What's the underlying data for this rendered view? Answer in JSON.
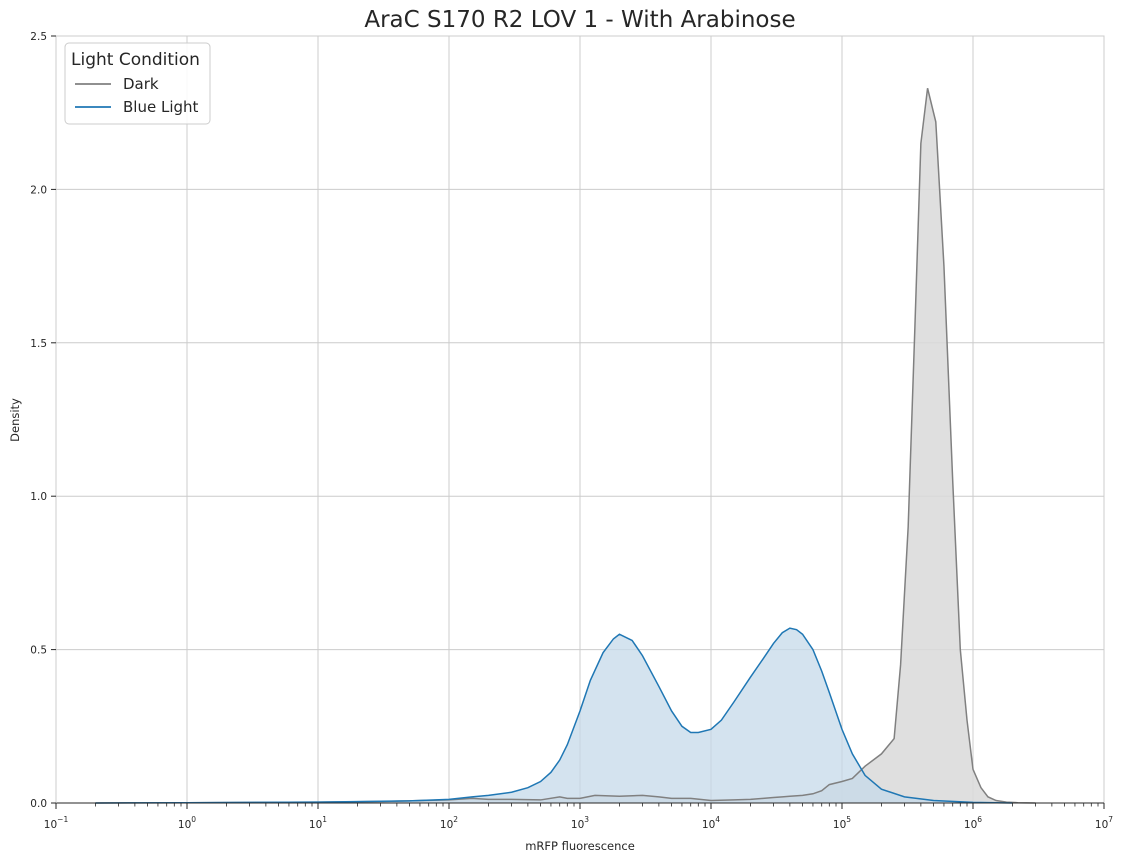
{
  "chart_data": {
    "type": "area",
    "title": "AraC S170 R2 LOV 1 - With Arabinose",
    "xlabel": "mRFP fluorescence",
    "ylabel": "Density",
    "x_scale": "log",
    "xlim": [
      0.1,
      10000000
    ],
    "ylim": [
      0,
      2.5
    ],
    "grid": true,
    "legend": {
      "title": "Light Condition",
      "placement": "top-left"
    },
    "x_ticks": [
      {
        "base": "10",
        "exp": "−1"
      },
      {
        "base": "10",
        "exp": "0"
      },
      {
        "base": "10",
        "exp": "1"
      },
      {
        "base": "10",
        "exp": "2"
      },
      {
        "base": "10",
        "exp": "3"
      },
      {
        "base": "10",
        "exp": "4"
      },
      {
        "base": "10",
        "exp": "5"
      },
      {
        "base": "10",
        "exp": "6"
      },
      {
        "base": "10",
        "exp": "7"
      }
    ],
    "y_ticks": [
      "0.0",
      "0.5",
      "1.0",
      "1.5",
      "2.0",
      "2.5"
    ],
    "series": [
      {
        "name": "Dark",
        "color": "#808080",
        "fill": "#d9d9d9",
        "x": [
          0.2,
          1,
          10,
          30,
          100,
          150,
          200,
          300,
          500,
          700,
          800,
          1000,
          1300,
          2000,
          3000,
          4000,
          5000,
          7000,
          10000,
          15000,
          20000,
          25000,
          30000,
          35000,
          40000,
          50000,
          60000,
          70000,
          80000,
          100000,
          120000,
          150000,
          200000,
          250000,
          280000,
          320000,
          360000,
          400000,
          450000,
          520000,
          600000,
          700000,
          800000,
          900000,
          1000000,
          1150000,
          1300000,
          1500000,
          1800000,
          2200000,
          3000000
        ],
        "y": [
          0.0,
          0.001,
          0.003,
          0.005,
          0.01,
          0.015,
          0.012,
          0.012,
          0.01,
          0.02,
          0.015,
          0.015,
          0.025,
          0.022,
          0.025,
          0.02,
          0.015,
          0.015,
          0.008,
          0.01,
          0.012,
          0.015,
          0.018,
          0.02,
          0.022,
          0.025,
          0.03,
          0.04,
          0.06,
          0.07,
          0.08,
          0.12,
          0.16,
          0.21,
          0.45,
          0.9,
          1.55,
          2.15,
          2.33,
          2.22,
          1.75,
          1.05,
          0.5,
          0.27,
          0.11,
          0.05,
          0.02,
          0.008,
          0.003,
          0.001,
          0.0
        ]
      },
      {
        "name": "Blue Light",
        "color": "#1f77b4",
        "fill": "#c5d9ea",
        "x": [
          0.2,
          1,
          10,
          50,
          100,
          150,
          200,
          300,
          400,
          500,
          600,
          700,
          800,
          1000,
          1200,
          1500,
          1800,
          2000,
          2500,
          3000,
          4000,
          5000,
          6000,
          7000,
          8000,
          10000,
          12000,
          15000,
          20000,
          25000,
          30000,
          35000,
          40000,
          45000,
          50000,
          60000,
          70000,
          80000,
          100000,
          120000,
          150000,
          200000,
          300000,
          500000,
          1000000,
          2000000
        ],
        "y": [
          0.0,
          0.001,
          0.003,
          0.007,
          0.012,
          0.02,
          0.025,
          0.035,
          0.05,
          0.07,
          0.1,
          0.14,
          0.19,
          0.3,
          0.4,
          0.49,
          0.535,
          0.55,
          0.53,
          0.48,
          0.38,
          0.3,
          0.25,
          0.23,
          0.23,
          0.24,
          0.27,
          0.33,
          0.41,
          0.47,
          0.52,
          0.555,
          0.57,
          0.565,
          0.55,
          0.5,
          0.43,
          0.36,
          0.24,
          0.16,
          0.09,
          0.045,
          0.02,
          0.008,
          0.002,
          0.0
        ]
      }
    ]
  }
}
